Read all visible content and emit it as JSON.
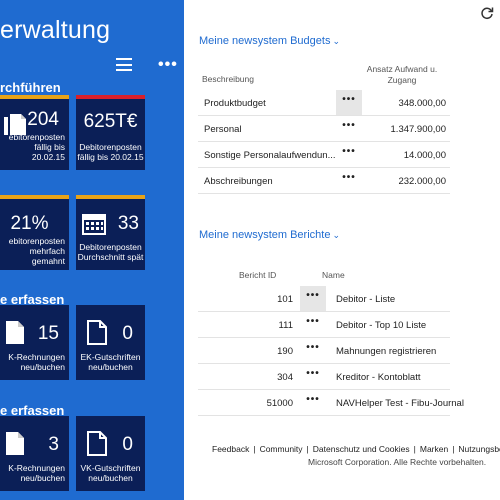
{
  "left": {
    "title": "erwaltung",
    "sections": [
      {
        "title": "rchführen"
      },
      {
        "title": ""
      },
      {
        "title": "e erfassen"
      },
      {
        "title": "e erfassen"
      }
    ],
    "tiles": [
      {
        "value": "204",
        "caption1": "ebitorenposten",
        "caption2": "fällig bis 20.02.15",
        "bar": "#e8a317"
      },
      {
        "value": "625T€",
        "caption1": "Debitorenposten",
        "caption2": "fällig bis 20.02.15",
        "bar": "#d9202a"
      },
      {
        "value": "21%",
        "caption1": "ebitorenposten",
        "caption2": "mehrfach",
        "caption3": "gemahnt",
        "bar": "#e8a317"
      },
      {
        "value": "33",
        "caption1": "Debitorenposten",
        "caption2": "Durchschnitt spät",
        "bar": "#e8a317"
      },
      {
        "value": "15",
        "caption1": "K-Rechnungen",
        "caption2": "neu/buchen",
        "bar": ""
      },
      {
        "value": "0",
        "caption1": "EK-Gutschriften",
        "caption2": "neu/buchen",
        "bar": ""
      },
      {
        "value": "3",
        "caption1": "K-Rechnungen",
        "caption2": "neu/buchen",
        "bar": ""
      },
      {
        "value": "0",
        "caption1": "VK-Gutschriften",
        "caption2": "neu/buchen",
        "bar": ""
      }
    ]
  },
  "budgets": {
    "title": "Meine newsystem Budgets",
    "col1": "Beschreibung",
    "col2a": "Ansatz Aufwand u.",
    "col2b": "Zugang",
    "rows": [
      {
        "desc": "Produktbudget",
        "amount": "348.000,00"
      },
      {
        "desc": "Personal",
        "amount": "1.347.900,00"
      },
      {
        "desc": "Sonstige Personalaufwendun...",
        "amount": "14.000,00"
      },
      {
        "desc": "Abschreibungen",
        "amount": "232.000,00"
      }
    ]
  },
  "reports": {
    "title": "Meine newsystem Berichte",
    "col1": "Bericht ID",
    "col2": "Name",
    "rows": [
      {
        "id": "101",
        "name": "Debitor - Liste"
      },
      {
        "id": "111",
        "name": "Debitor - Top 10 Liste"
      },
      {
        "id": "190",
        "name": "Mahnungen registrieren"
      },
      {
        "id": "304",
        "name": "Kreditor - Kontoblatt"
      },
      {
        "id": "51000",
        "name": "NAVHelper Test - Fibu-Journal"
      }
    ]
  },
  "more_label": "•••",
  "footer": {
    "links": [
      "Feedback",
      "Community",
      "Datenschutz und Cookies",
      "Marken",
      "Nutzungsbe"
    ],
    "separator": "|",
    "copyright": "Microsoft Corporation. Alle Rechte vorbehalten."
  }
}
